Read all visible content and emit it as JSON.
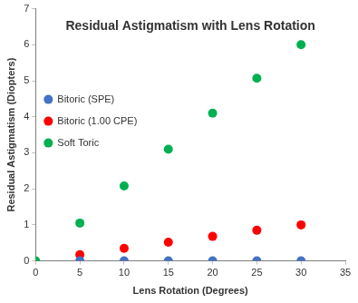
{
  "chart_data": {
    "type": "scatter",
    "title": "Residual Astigmatism with Lens Rotation",
    "x_label": "Lens Rotation (Degrees)",
    "y_label": "Residual Astigmatism (Diopters)",
    "x": [
      0,
      5,
      10,
      15,
      20,
      25,
      30
    ],
    "series": [
      {
        "name": "Bitoric (SPE)",
        "color": "#4472c4",
        "marker": "circle",
        "values": [
          null,
          0,
          0,
          0,
          0,
          0,
          0
        ]
      },
      {
        "name": "Bitoric (1.00 CPE)",
        "color": "#ff0000",
        "marker": "circle",
        "values": [
          null,
          0.17,
          0.35,
          0.52,
          0.68,
          0.85,
          1.0
        ]
      },
      {
        "name": "Soft Toric",
        "color": "#00b050",
        "marker": "circle",
        "values": [
          0,
          1.05,
          2.08,
          3.1,
          4.1,
          5.07,
          6.0
        ]
      }
    ],
    "xlim": [
      0,
      35
    ],
    "xticks": [
      0,
      5,
      10,
      15,
      20,
      25,
      30,
      35
    ],
    "ylim": [
      0,
      7
    ],
    "yticks": [
      0,
      1,
      2,
      3,
      4,
      5,
      6,
      7
    ],
    "grid": false,
    "legend": "upper left"
  }
}
